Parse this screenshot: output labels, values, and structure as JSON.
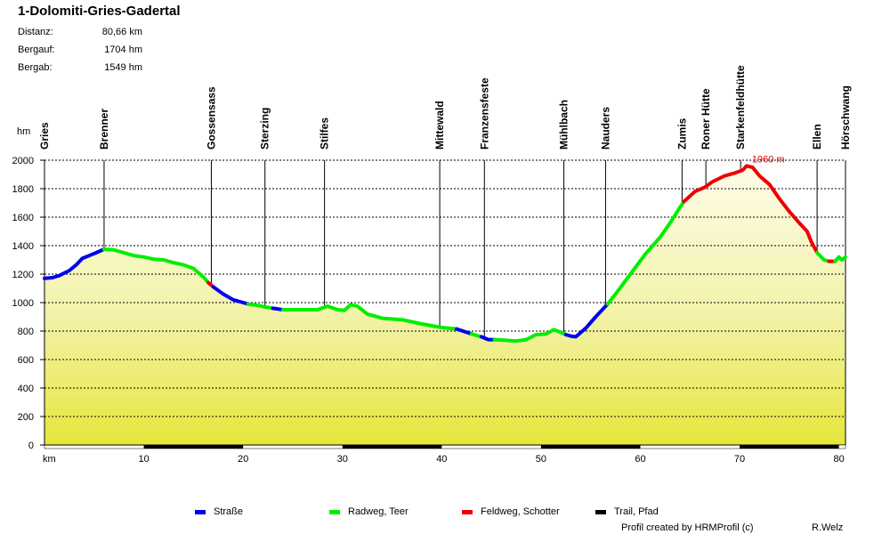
{
  "title": "1-Dolomiti-Gries-Gadertal",
  "stats": [
    {
      "label": "Distanz:",
      "value": "80,66 km"
    },
    {
      "label": "Bergauf:",
      "value": "1704 hm"
    },
    {
      "label": "Bergab:",
      "value": "1549 hm"
    }
  ],
  "chart_data": {
    "type": "area",
    "ylabel": "hm",
    "xlabel": "km",
    "xlim": [
      0,
      80.66
    ],
    "ylim": [
      0,
      2000
    ],
    "yticks": [
      0,
      200,
      400,
      600,
      800,
      1000,
      1200,
      1400,
      1600,
      1800,
      2000
    ],
    "xticks": [
      10,
      20,
      30,
      40,
      50,
      60,
      70,
      80
    ],
    "grid": true,
    "max_label": "1960 m",
    "max_point": {
      "x": 70.7,
      "y": 1960
    },
    "waypoints": [
      {
        "name": "Gries",
        "km": 0
      },
      {
        "name": "Brenner",
        "km": 6.0
      },
      {
        "name": "Gossensass",
        "km": 16.8
      },
      {
        "name": "Sterzing",
        "km": 22.2
      },
      {
        "name": "Stilfes",
        "km": 28.2
      },
      {
        "name": "Mittewald",
        "km": 39.8
      },
      {
        "name": "Franzensfeste",
        "km": 44.3
      },
      {
        "name": "Mühlbach",
        "km": 52.3
      },
      {
        "name": "Nauders",
        "km": 56.5
      },
      {
        "name": "Zumis",
        "km": 64.2
      },
      {
        "name": "Roner Hütte",
        "km": 66.6
      },
      {
        "name": "Starkenfeldhütte",
        "km": 70.1
      },
      {
        "name": "Ellen",
        "km": 77.8
      },
      {
        "name": "Hörschwang",
        "km": 80.66
      }
    ],
    "series": [
      {
        "name": "Straße",
        "color": "#0000ee",
        "points": [
          [
            0,
            1170
          ],
          [
            0.8,
            1175
          ],
          [
            1.5,
            1190
          ],
          [
            2.5,
            1225
          ],
          [
            3.2,
            1265
          ],
          [
            3.8,
            1310
          ],
          [
            4.5,
            1330
          ],
          [
            5.2,
            1350
          ],
          [
            6,
            1375
          ]
        ]
      },
      {
        "name": "Radweg, Teer",
        "color": "#00ee00",
        "points": [
          [
            6,
            1375
          ],
          [
            7,
            1370
          ],
          [
            8,
            1350
          ],
          [
            9,
            1330
          ],
          [
            10,
            1320
          ],
          [
            11,
            1305
          ],
          [
            12,
            1300
          ],
          [
            13,
            1280
          ],
          [
            14,
            1265
          ],
          [
            15,
            1240
          ],
          [
            16,
            1180
          ],
          [
            16.5,
            1140
          ]
        ]
      },
      {
        "name": "Feldweg, Schotter",
        "color": "#ee0000",
        "points": [
          [
            16.5,
            1140
          ],
          [
            17,
            1110
          ]
        ]
      },
      {
        "name": "Straße",
        "color": "#0000ee",
        "points": [
          [
            17,
            1110
          ],
          [
            18,
            1060
          ],
          [
            19,
            1020
          ],
          [
            20,
            1000
          ],
          [
            20.5,
            990
          ]
        ]
      },
      {
        "name": "Radweg, Teer",
        "color": "#00ee00",
        "points": [
          [
            20.5,
            990
          ],
          [
            21.5,
            980
          ],
          [
            22.2,
            970
          ],
          [
            23,
            960
          ]
        ]
      },
      {
        "name": "Straße",
        "color": "#0000ee",
        "points": [
          [
            23,
            960
          ],
          [
            24,
            950
          ]
        ]
      },
      {
        "name": "Radweg, Teer",
        "color": "#00ee00",
        "points": [
          [
            24,
            950
          ],
          [
            26,
            950
          ],
          [
            27.5,
            950
          ],
          [
            28.5,
            975
          ],
          [
            29.5,
            950
          ],
          [
            30.2,
            945
          ],
          [
            30.8,
            985
          ],
          [
            31.5,
            975
          ],
          [
            32.5,
            920
          ],
          [
            34,
            890
          ],
          [
            36,
            880
          ],
          [
            38,
            850
          ],
          [
            40,
            825
          ],
          [
            41.5,
            815
          ]
        ]
      },
      {
        "name": "Straße",
        "color": "#0000ee",
        "points": [
          [
            41.5,
            815
          ],
          [
            43,
            780
          ]
        ]
      },
      {
        "name": "Radweg, Teer",
        "color": "#00ee00",
        "points": [
          [
            43,
            780
          ],
          [
            44,
            760
          ]
        ]
      },
      {
        "name": "Straße",
        "color": "#0000ee",
        "points": [
          [
            44,
            760
          ],
          [
            44.7,
            740
          ],
          [
            45.3,
            740
          ]
        ]
      },
      {
        "name": "Radweg, Teer",
        "color": "#00ee00",
        "points": [
          [
            45.3,
            740
          ],
          [
            46.5,
            735
          ],
          [
            47.5,
            730
          ],
          [
            48.5,
            740
          ],
          [
            49.5,
            775
          ],
          [
            50.5,
            780
          ],
          [
            51.3,
            810
          ],
          [
            52,
            790
          ],
          [
            52.5,
            775
          ]
        ]
      },
      {
        "name": "Straße",
        "color": "#0000ee",
        "points": [
          [
            52.5,
            775
          ],
          [
            53,
            765
          ],
          [
            53.5,
            760
          ],
          [
            54.5,
            820
          ],
          [
            55.5,
            900
          ],
          [
            56.7,
            990
          ]
        ]
      },
      {
        "name": "Radweg, Teer",
        "color": "#00ee00",
        "points": [
          [
            56.7,
            990
          ],
          [
            57.5,
            1060
          ],
          [
            59,
            1200
          ],
          [
            60.5,
            1340
          ],
          [
            62,
            1460
          ],
          [
            63,
            1560
          ],
          [
            64,
            1670
          ],
          [
            64.4,
            1710
          ]
        ]
      },
      {
        "name": "Feldweg, Schotter",
        "color": "#ee0000",
        "points": [
          [
            64.4,
            1710
          ],
          [
            65.5,
            1780
          ],
          [
            66.5,
            1810
          ],
          [
            67.3,
            1850
          ],
          [
            68.5,
            1890
          ],
          [
            69.5,
            1910
          ],
          [
            70.3,
            1930
          ],
          [
            70.7,
            1960
          ],
          [
            71.3,
            1950
          ],
          [
            72,
            1890
          ],
          [
            73,
            1830
          ],
          [
            74,
            1730
          ],
          [
            75,
            1640
          ],
          [
            76,
            1560
          ],
          [
            76.8,
            1500
          ],
          [
            77.2,
            1430
          ],
          [
            77.8,
            1350
          ]
        ]
      },
      {
        "name": "Radweg, Teer",
        "color": "#00ee00",
        "points": [
          [
            77.8,
            1350
          ],
          [
            78.5,
            1300
          ],
          [
            79,
            1290
          ]
        ]
      },
      {
        "name": "Feldweg, Schotter",
        "color": "#ee0000",
        "points": [
          [
            79,
            1290
          ],
          [
            79.6,
            1290
          ]
        ]
      },
      {
        "name": "Radweg, Teer",
        "color": "#00ee00",
        "points": [
          [
            79.6,
            1290
          ],
          [
            80,
            1320
          ],
          [
            80.3,
            1300
          ],
          [
            80.66,
            1320
          ]
        ]
      }
    ]
  },
  "legend": [
    {
      "label": "Straße",
      "color": "#0000ee"
    },
    {
      "label": "Radweg, Teer",
      "color": "#00ee00"
    },
    {
      "label": "Feldweg, Schotter",
      "color": "#ee0000"
    },
    {
      "label": "Trail, Pfad",
      "color": "#000000"
    }
  ],
  "footer": {
    "credit": "Profil created by HRMProfil (c)",
    "author": "R.Welz"
  }
}
